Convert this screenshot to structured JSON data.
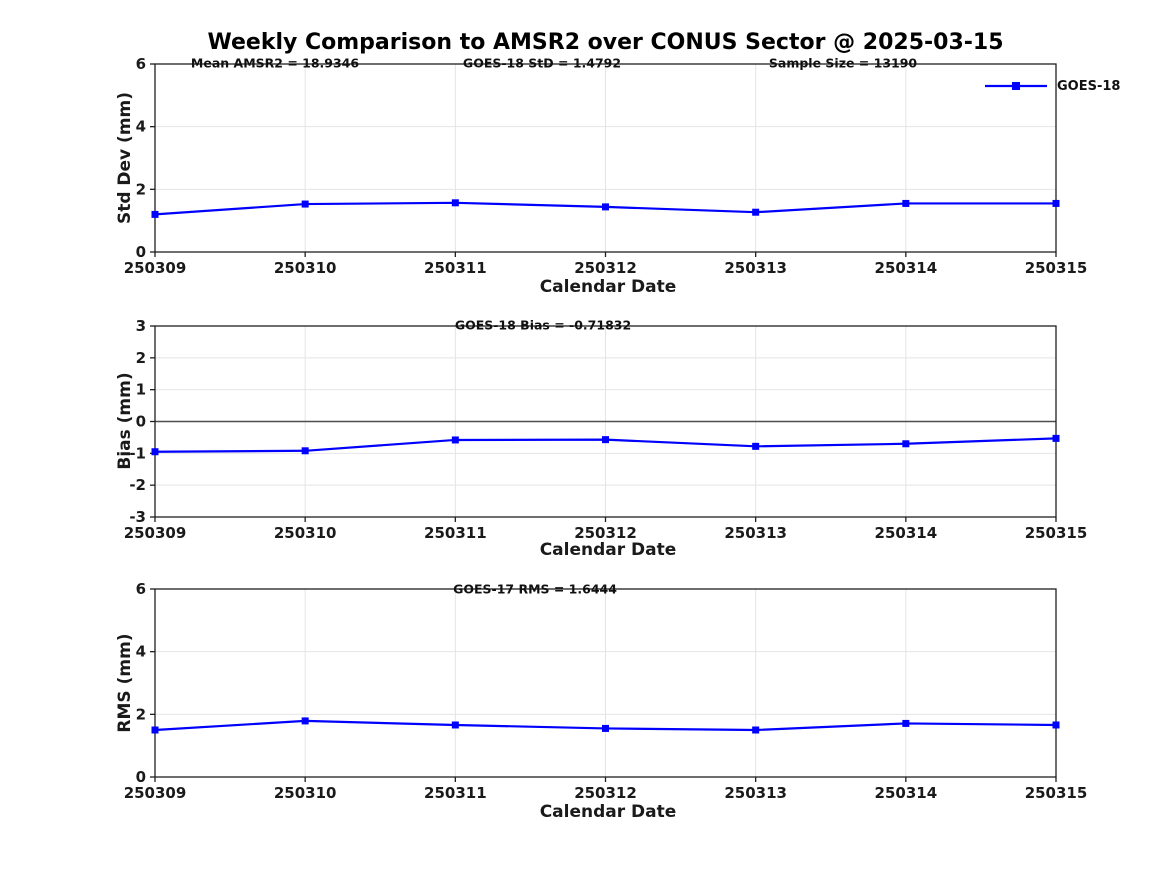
{
  "title": "Weekly Comparison to AMSR2 over CONUS Sector @ 2025-03-15",
  "legend": {
    "label": "GOES-18",
    "marker": "square",
    "position": "top-right-of-first-subplot"
  },
  "colors": {
    "line": "#0000ff",
    "grid": "#e4e4e4",
    "axis": "#1f1f1f",
    "zero_line": "#4d4d4d",
    "text": "#000000",
    "background": "#ffffff"
  },
  "chart_data": [
    {
      "type": "line",
      "subplot": "std-dev",
      "annotations": [
        "Mean AMSR2 = 18.9346",
        "GOES-18 StD = 1.4792",
        "Sample Size = 13190"
      ],
      "categories": [
        "250309",
        "250310",
        "250311",
        "250312",
        "250313",
        "250314",
        "250315"
      ],
      "series": [
        {
          "name": "GOES-18",
          "marker": "square",
          "values": [
            1.2,
            1.53,
            1.57,
            1.44,
            1.27,
            1.55,
            1.55
          ]
        }
      ],
      "xlabel": "Calendar Date",
      "ylabel": "Std Dev (mm)",
      "ylim": [
        0,
        6
      ],
      "yticks": [
        0,
        2,
        4,
        6
      ],
      "grid": true,
      "zero_line": false
    },
    {
      "type": "line",
      "subplot": "bias",
      "annotations": [
        "GOES-18 Bias  = -0.71832"
      ],
      "categories": [
        "250309",
        "250310",
        "250311",
        "250312",
        "250313",
        "250314",
        "250315"
      ],
      "series": [
        {
          "name": "GOES-18",
          "marker": "square",
          "values": [
            -0.95,
            -0.92,
            -0.58,
            -0.57,
            -0.78,
            -0.7,
            -0.53
          ]
        }
      ],
      "xlabel": "Calendar Date",
      "ylabel": "Bias (mm)",
      "ylim": [
        -3,
        3
      ],
      "yticks": [
        -3,
        -2,
        -1,
        0,
        1,
        2,
        3
      ],
      "grid": true,
      "zero_line": true
    },
    {
      "type": "line",
      "subplot": "rms",
      "annotations": [
        "GOES-17 RMS = 1.6444"
      ],
      "categories": [
        "250309",
        "250310",
        "250311",
        "250312",
        "250313",
        "250314",
        "250315"
      ],
      "series": [
        {
          "name": "GOES-18",
          "marker": "square",
          "values": [
            1.5,
            1.79,
            1.66,
            1.55,
            1.5,
            1.71,
            1.66
          ]
        }
      ],
      "xlabel": "Calendar Date",
      "ylabel": "RMS (mm)",
      "ylim": [
        0,
        6
      ],
      "yticks": [
        0,
        2,
        4,
        6
      ],
      "grid": true,
      "zero_line": false
    }
  ]
}
